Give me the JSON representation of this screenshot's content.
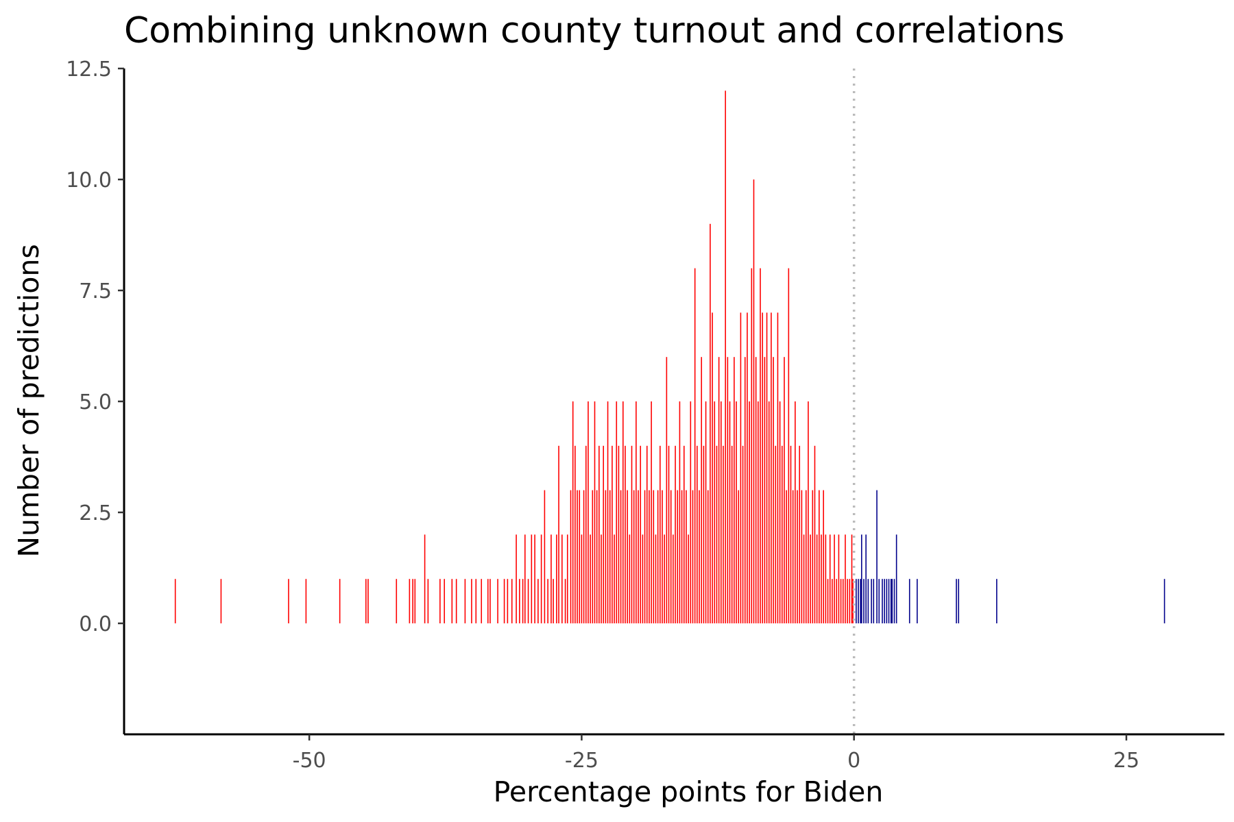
{
  "chart_data": {
    "type": "bar",
    "title": "Combining unknown county turnout and correlations",
    "xlabel": "Percentage points for Biden",
    "ylabel": "Number of predictions",
    "xlim": [
      -67,
      34
    ],
    "ylim": [
      -2.5,
      12.5
    ],
    "xticks": [
      -50,
      -25,
      0,
      25
    ],
    "xtick_labels": [
      "-50",
      "-25",
      "0",
      "25"
    ],
    "yticks": [
      0,
      2.5,
      5,
      7.5,
      10,
      12.5
    ],
    "ytick_labels": [
      "0.0",
      "2.5",
      "5.0",
      "7.5",
      "10.0",
      "12.5"
    ],
    "reference_line": {
      "x": 0,
      "style": "dotted",
      "color": "#bbbbbb"
    },
    "bin_width": 0.1,
    "grid": false,
    "legend": "none",
    "colors": {
      "trump": "#ff0000",
      "biden": "#00008b"
    },
    "series": [
      {
        "color": "#ff0000",
        "points": [
          [
            -62.3,
            1
          ],
          [
            -58.1,
            1
          ],
          [
            -51.9,
            1
          ],
          [
            -50.3,
            1
          ],
          [
            -47.2,
            1
          ],
          [
            -44.8,
            1
          ],
          [
            -44.6,
            1
          ],
          [
            -42.0,
            1
          ],
          [
            -40.8,
            1
          ],
          [
            -40.5,
            1
          ],
          [
            -40.3,
            1
          ],
          [
            -39.4,
            2
          ],
          [
            -39.1,
            1
          ],
          [
            -38.0,
            1
          ],
          [
            -37.6,
            1
          ],
          [
            -36.9,
            1
          ],
          [
            -36.5,
            1
          ],
          [
            -35.7,
            1
          ],
          [
            -35.1,
            1
          ],
          [
            -34.7,
            1
          ],
          [
            -34.2,
            1
          ],
          [
            -33.6,
            1
          ],
          [
            -33.4,
            1
          ],
          [
            -32.7,
            1
          ],
          [
            -32.1,
            1
          ],
          [
            -31.8,
            1
          ],
          [
            -31.4,
            1
          ],
          [
            -31.0,
            2
          ],
          [
            -30.7,
            1
          ],
          [
            -30.4,
            1
          ],
          [
            -30.2,
            2
          ],
          [
            -29.9,
            1
          ],
          [
            -29.6,
            2
          ],
          [
            -29.3,
            2
          ],
          [
            -29.0,
            1
          ],
          [
            -28.7,
            2
          ],
          [
            -28.4,
            3
          ],
          [
            -28.1,
            1
          ],
          [
            -27.8,
            2
          ],
          [
            -27.6,
            1
          ],
          [
            -27.3,
            2
          ],
          [
            -27.1,
            4
          ],
          [
            -26.8,
            2
          ],
          [
            -26.5,
            1
          ],
          [
            -26.3,
            2
          ],
          [
            -26.0,
            3
          ],
          [
            -25.8,
            5
          ],
          [
            -25.6,
            4
          ],
          [
            -25.4,
            3
          ],
          [
            -25.2,
            3
          ],
          [
            -25.0,
            2
          ],
          [
            -24.8,
            3
          ],
          [
            -24.6,
            4
          ],
          [
            -24.4,
            5
          ],
          [
            -24.2,
            2
          ],
          [
            -24.0,
            3
          ],
          [
            -23.8,
            5
          ],
          [
            -23.6,
            3
          ],
          [
            -23.4,
            4
          ],
          [
            -23.2,
            2
          ],
          [
            -23.0,
            4
          ],
          [
            -22.8,
            3
          ],
          [
            -22.6,
            5
          ],
          [
            -22.4,
            3
          ],
          [
            -22.2,
            4
          ],
          [
            -22.0,
            2
          ],
          [
            -21.8,
            5
          ],
          [
            -21.6,
            4
          ],
          [
            -21.4,
            3
          ],
          [
            -21.2,
            5
          ],
          [
            -21.0,
            4
          ],
          [
            -20.8,
            3
          ],
          [
            -20.6,
            2
          ],
          [
            -20.4,
            4
          ],
          [
            -20.2,
            3
          ],
          [
            -20.0,
            5
          ],
          [
            -19.8,
            3
          ],
          [
            -19.6,
            4
          ],
          [
            -19.4,
            2
          ],
          [
            -19.2,
            3
          ],
          [
            -19.0,
            4
          ],
          [
            -18.8,
            3
          ],
          [
            -18.6,
            5
          ],
          [
            -18.4,
            3
          ],
          [
            -18.2,
            2
          ],
          [
            -18.0,
            3
          ],
          [
            -17.8,
            4
          ],
          [
            -17.6,
            3
          ],
          [
            -17.4,
            2
          ],
          [
            -17.2,
            6
          ],
          [
            -17.0,
            4
          ],
          [
            -16.8,
            3
          ],
          [
            -16.6,
            2
          ],
          [
            -16.4,
            4
          ],
          [
            -16.2,
            3
          ],
          [
            -16.0,
            5
          ],
          [
            -15.8,
            3
          ],
          [
            -15.6,
            4
          ],
          [
            -15.4,
            3
          ],
          [
            -15.2,
            2
          ],
          [
            -15.0,
            5
          ],
          [
            -14.8,
            3
          ],
          [
            -14.6,
            8
          ],
          [
            -14.4,
            4
          ],
          [
            -14.2,
            3
          ],
          [
            -14.0,
            6
          ],
          [
            -13.8,
            4
          ],
          [
            -13.6,
            5
          ],
          [
            -13.4,
            3
          ],
          [
            -13.2,
            9
          ],
          [
            -13.0,
            7
          ],
          [
            -12.8,
            5
          ],
          [
            -12.6,
            4
          ],
          [
            -12.4,
            6
          ],
          [
            -12.2,
            5
          ],
          [
            -12.0,
            4
          ],
          [
            -11.8,
            12
          ],
          [
            -11.6,
            6
          ],
          [
            -11.4,
            5
          ],
          [
            -11.2,
            4
          ],
          [
            -11.0,
            6
          ],
          [
            -10.8,
            5
          ],
          [
            -10.6,
            3
          ],
          [
            -10.4,
            7
          ],
          [
            -10.2,
            4
          ],
          [
            -10.0,
            6
          ],
          [
            -9.8,
            7
          ],
          [
            -9.6,
            5
          ],
          [
            -9.4,
            8
          ],
          [
            -9.2,
            10
          ],
          [
            -9.0,
            6
          ],
          [
            -8.8,
            5
          ],
          [
            -8.6,
            8
          ],
          [
            -8.4,
            7
          ],
          [
            -8.2,
            6
          ],
          [
            -8.0,
            7
          ],
          [
            -7.8,
            5
          ],
          [
            -7.6,
            7
          ],
          [
            -7.4,
            6
          ],
          [
            -7.2,
            4
          ],
          [
            -7.0,
            7
          ],
          [
            -6.8,
            5
          ],
          [
            -6.6,
            4
          ],
          [
            -6.4,
            6
          ],
          [
            -6.2,
            3
          ],
          [
            -6.0,
            8
          ],
          [
            -5.8,
            4
          ],
          [
            -5.6,
            3
          ],
          [
            -5.4,
            5
          ],
          [
            -5.2,
            3
          ],
          [
            -5.0,
            4
          ],
          [
            -4.8,
            3
          ],
          [
            -4.6,
            2
          ],
          [
            -4.4,
            3
          ],
          [
            -4.2,
            5
          ],
          [
            -4.0,
            2
          ],
          [
            -3.8,
            3
          ],
          [
            -3.6,
            4
          ],
          [
            -3.4,
            2
          ],
          [
            -3.2,
            3
          ],
          [
            -3.0,
            2
          ],
          [
            -2.8,
            3
          ],
          [
            -2.6,
            2
          ],
          [
            -2.4,
            1
          ],
          [
            -2.2,
            2
          ],
          [
            -2.0,
            1
          ],
          [
            -1.8,
            2
          ],
          [
            -1.6,
            1
          ],
          [
            -1.4,
            2
          ],
          [
            -1.2,
            1
          ],
          [
            -1.0,
            1
          ],
          [
            -0.8,
            2
          ],
          [
            -0.6,
            1
          ],
          [
            -0.4,
            1
          ],
          [
            -0.2,
            2
          ],
          [
            -0.1,
            1
          ]
        ]
      },
      {
        "color": "#00008b",
        "points": [
          [
            0.2,
            1
          ],
          [
            0.4,
            1
          ],
          [
            0.6,
            1
          ],
          [
            0.7,
            2
          ],
          [
            0.9,
            1
          ],
          [
            1.1,
            2
          ],
          [
            1.3,
            1
          ],
          [
            1.6,
            1
          ],
          [
            1.8,
            1
          ],
          [
            2.1,
            3
          ],
          [
            2.3,
            1
          ],
          [
            2.6,
            1
          ],
          [
            2.8,
            1
          ],
          [
            3.0,
            1
          ],
          [
            3.2,
            1
          ],
          [
            3.4,
            1
          ],
          [
            3.5,
            1
          ],
          [
            3.7,
            1
          ],
          [
            3.9,
            2
          ],
          [
            5.1,
            1
          ],
          [
            5.8,
            1
          ],
          [
            9.4,
            1
          ],
          [
            9.6,
            1
          ],
          [
            13.1,
            1
          ],
          [
            28.5,
            1
          ]
        ]
      }
    ]
  }
}
